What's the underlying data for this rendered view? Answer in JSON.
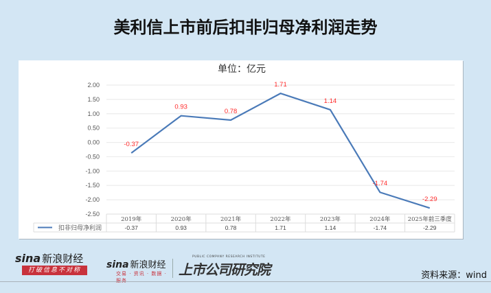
{
  "title": "美利信上市前后扣非归母净利润走势",
  "chart_data": {
    "type": "line",
    "title": "美利信上市前后扣非归母净利润走势",
    "subtitle": "单位：亿元",
    "categories": [
      "2019年",
      "2020年",
      "2021年",
      "2022年",
      "2023年",
      "2024年",
      "2025年前三季度"
    ],
    "series": [
      {
        "name": "扣非归母净利润",
        "values": [
          -0.37,
          0.93,
          0.78,
          1.71,
          1.14,
          -1.74,
          -2.29
        ],
        "color": "#4a7ab8"
      }
    ],
    "data_labels": [
      "-0.37",
      "0.93",
      "0.78",
      "1.71",
      "1.14",
      "-1.74",
      "-2.29"
    ],
    "data_label_color": "#ff2a2a",
    "xlabel": "",
    "ylabel": "",
    "ylim": [
      -2.5,
      2.0
    ],
    "yticks": [
      "2.00",
      "1.50",
      "1.00",
      "0.50",
      "0.00",
      "-0.50",
      "-1.00",
      "-1.50",
      "-2.00",
      "-2.50"
    ],
    "grid": true,
    "legend_position": "data-table",
    "data_table": {
      "series_label": "扣非归母净利润",
      "values": [
        "-0.37",
        "0.93",
        "0.78",
        "1.71",
        "1.14",
        "-1.74",
        "-2.29"
      ]
    }
  },
  "unit_label": "单位：亿元",
  "footer": {
    "logo1_brand": "sina",
    "logo1_cn": "新浪财经",
    "logo1_tagline": "打破信息不对称",
    "logo2_brand": "sina",
    "logo2_cn": "新浪财经",
    "logo2_sub": "交易 · 资讯 · 数据 · 服务",
    "logo3_en": "PUBLIC COMPANY RESEARCH INSTITUTE",
    "logo3_cn": "上市公司研究院",
    "source": "资料来源：wind"
  }
}
